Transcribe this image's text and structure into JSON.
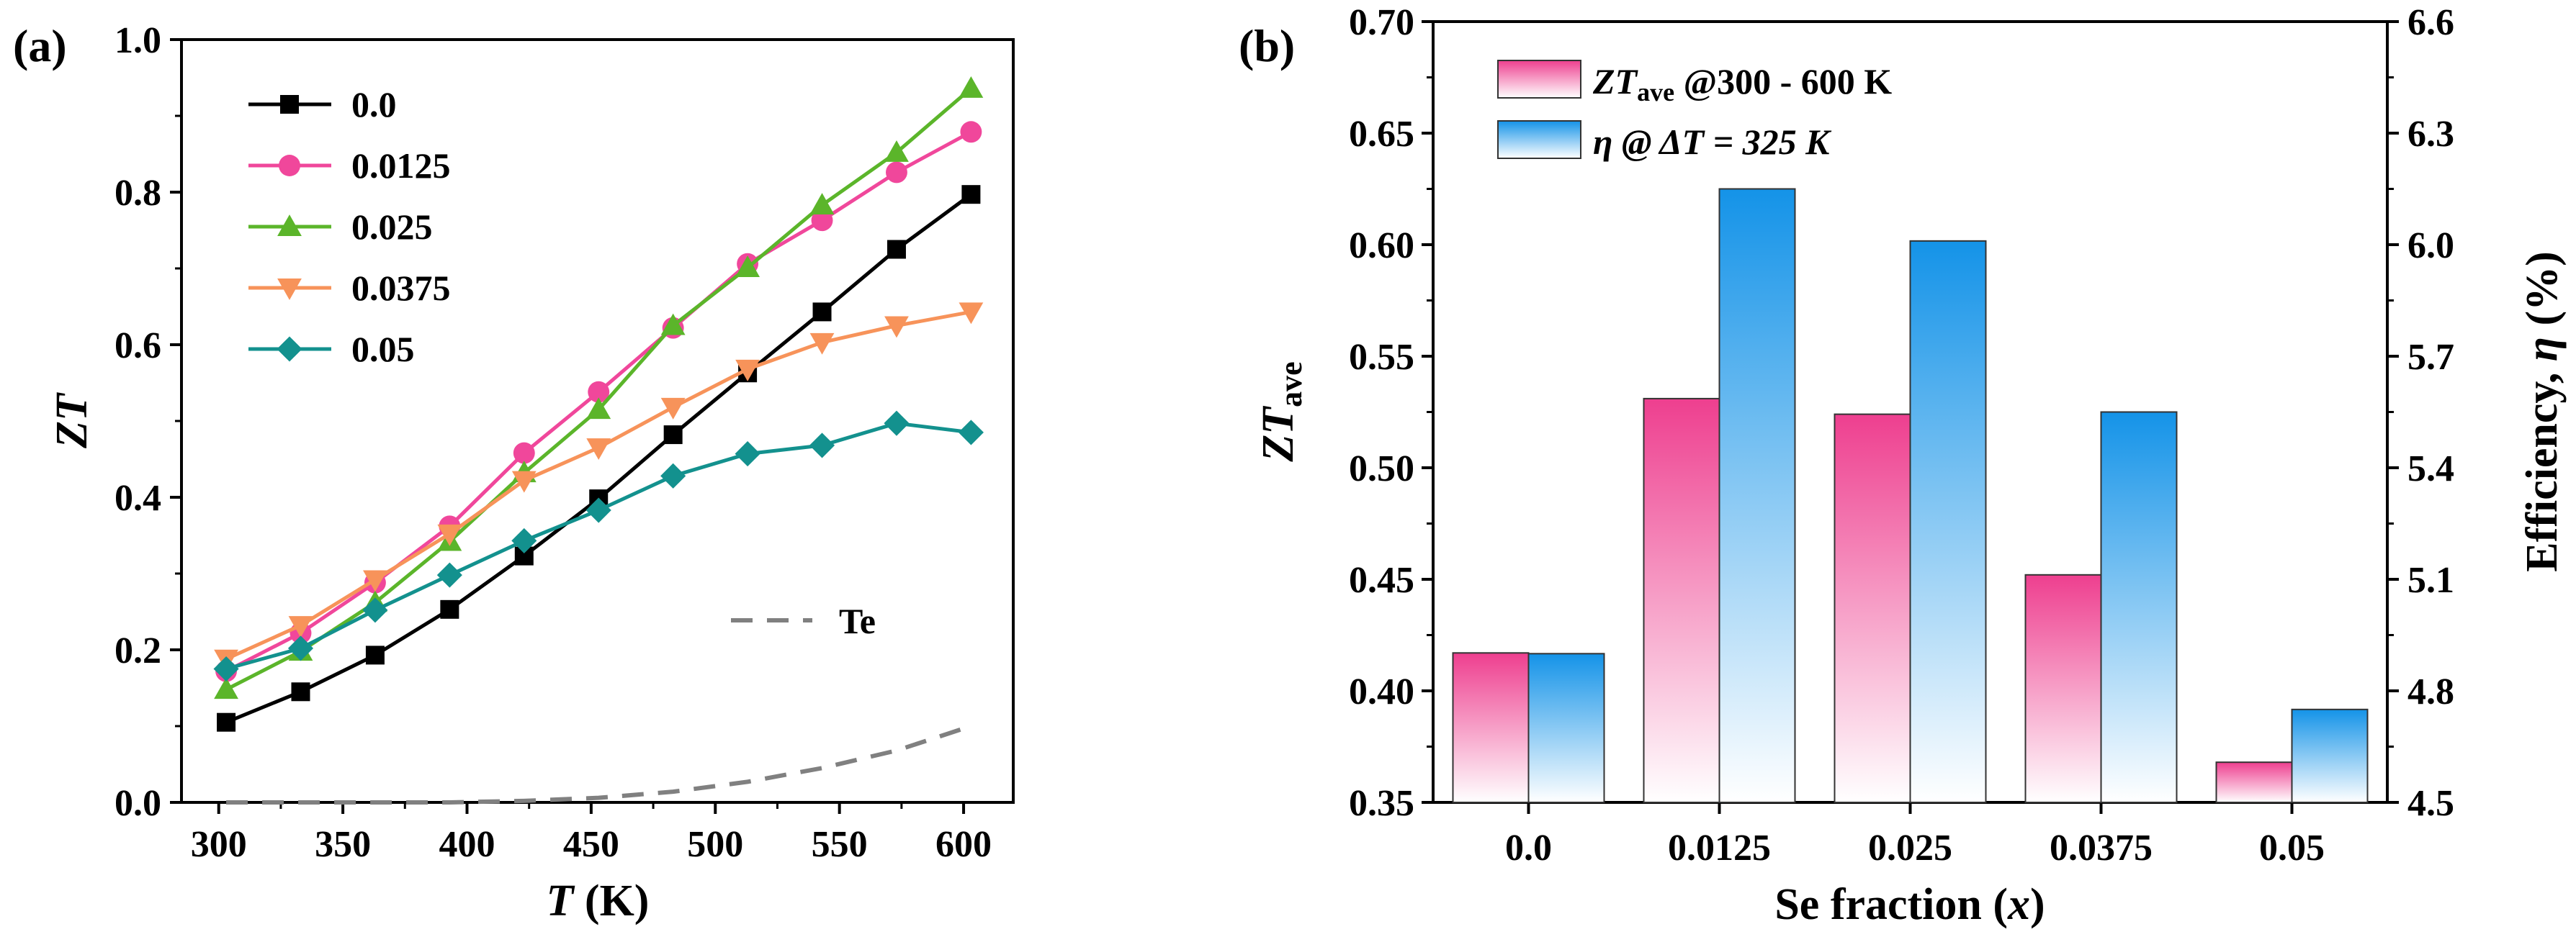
{
  "chart_data": [
    {
      "panel": "(a)",
      "type": "line",
      "xlabel": {
        "italic": "T",
        "rest": " (K)"
      },
      "ylabel": "ZT",
      "xlim": [
        285,
        620
      ],
      "ylim": [
        0.0,
        1.0
      ],
      "xticks": [
        "300",
        "350",
        "400",
        "450",
        "500",
        "550",
        "600"
      ],
      "yticks": [
        "0.0",
        "0.2",
        "0.4",
        "0.6",
        "0.8",
        "1.0"
      ],
      "legend_position": "top-left",
      "series": [
        {
          "name": "0.0",
          "color": "#000000",
          "marker": "square",
          "x": [
            303,
            333,
            363,
            393,
            423,
            453,
            483,
            513,
            543,
            573,
            603
          ],
          "y": [
            0.105,
            0.145,
            0.193,
            0.253,
            0.323,
            0.398,
            0.482,
            0.563,
            0.643,
            0.725,
            0.797
          ]
        },
        {
          "name": "0.0125",
          "color": "#f0479b",
          "marker": "circle",
          "x": [
            303,
            333,
            363,
            393,
            423,
            453,
            483,
            513,
            543,
            573,
            603
          ],
          "y": [
            0.172,
            0.222,
            0.288,
            0.362,
            0.458,
            0.538,
            0.622,
            0.706,
            0.763,
            0.826,
            0.879
          ]
        },
        {
          "name": "0.025",
          "color": "#5bb52a",
          "marker": "triangle-up",
          "x": [
            303,
            333,
            363,
            393,
            423,
            453,
            483,
            513,
            543,
            573,
            603
          ],
          "y": [
            0.148,
            0.198,
            0.262,
            0.342,
            0.432,
            0.515,
            0.625,
            0.701,
            0.783,
            0.852,
            0.936
          ]
        },
        {
          "name": "0.0375",
          "color": "#f7935a",
          "marker": "triangle-down",
          "x": [
            303,
            333,
            363,
            393,
            423,
            453,
            483,
            513,
            543,
            573,
            603
          ],
          "y": [
            0.188,
            0.232,
            0.292,
            0.352,
            0.422,
            0.465,
            0.518,
            0.568,
            0.603,
            0.625,
            0.643
          ]
        },
        {
          "name": "0.05",
          "color": "#13918e",
          "marker": "diamond",
          "x": [
            303,
            333,
            363,
            393,
            423,
            453,
            483,
            513,
            543,
            573,
            603
          ],
          "y": [
            0.175,
            0.202,
            0.252,
            0.298,
            0.343,
            0.383,
            0.428,
            0.457,
            0.468,
            0.497,
            0.485
          ]
        },
        {
          "name": "Te",
          "color": "#808080",
          "marker": "none",
          "dashed": true,
          "x": [
            303,
            333,
            363,
            393,
            423,
            453,
            483,
            513,
            543,
            573,
            603
          ],
          "y": [
            0.0,
            0.0,
            0.0,
            0.0,
            0.002,
            0.006,
            0.014,
            0.027,
            0.045,
            0.068,
            0.1
          ]
        }
      ]
    },
    {
      "panel": "(b)",
      "type": "bar",
      "xlabel": {
        "plain": "Se fraction (",
        "italic": "x",
        "tail": ")"
      },
      "ylabel": {
        "main": "ZT",
        "sub": "ave"
      },
      "ylabel_right": {
        "plain": "Efficiency, ",
        "italic": "η",
        "tail": " (%)"
      },
      "categories": [
        "0.0",
        "0.0125",
        "0.025",
        "0.0375",
        "0.05"
      ],
      "ylim": [
        0.35,
        0.7
      ],
      "ylim_right": [
        4.5,
        6.6
      ],
      "yticks": [
        "0.35",
        "0.40",
        "0.45",
        "0.50",
        "0.55",
        "0.60",
        "0.65",
        "0.70"
      ],
      "yticks_right": [
        "4.5",
        "4.8",
        "5.1",
        "5.4",
        "5.7",
        "6.0",
        "6.3",
        "6.6"
      ],
      "legend_position": "top-left",
      "series": [
        {
          "name": "ZT_ave @300 - 600 K",
          "legend": {
            "main": "ZT",
            "sub": "ave",
            "tail": " @300 - 600 K"
          },
          "color": "#ee3f8f",
          "axis": "left",
          "values": [
            0.417,
            0.531,
            0.524,
            0.452,
            0.368
          ]
        },
        {
          "name": "η @ ΔT = 325 K",
          "legend": {
            "main": "η",
            "mid": " @ Δ",
            "mid_it": "T",
            "tail": " = 325 K"
          },
          "color": "#1493e8",
          "axis": "right",
          "values": [
            4.9,
            6.15,
            6.01,
            5.55,
            4.75
          ]
        }
      ]
    }
  ]
}
